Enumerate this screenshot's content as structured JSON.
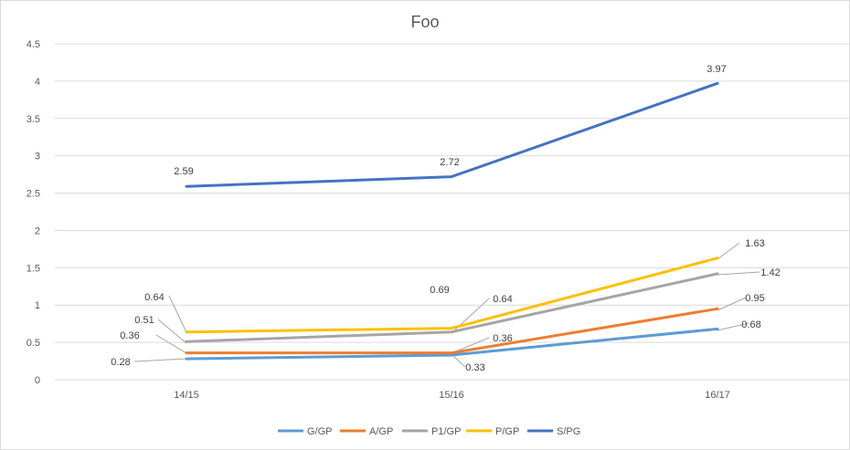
{
  "chart_data": {
    "type": "line",
    "title": "Foo",
    "categories": [
      "14/15",
      "15/16",
      "16/17"
    ],
    "ylim": [
      0,
      4.5
    ],
    "yticks": [
      "0",
      "0.5",
      "1",
      "1.5",
      "2",
      "2.5",
      "3",
      "3.5",
      "4",
      "4.5"
    ],
    "grid": true,
    "legend_position": "bottom",
    "series": [
      {
        "name": "G/GP",
        "color": "#5b9bd5",
        "values": [
          0.28,
          0.33,
          0.68
        ],
        "labels": [
          "0.28",
          "0.33",
          "0.68"
        ]
      },
      {
        "name": "A/GP",
        "color": "#ed7d31",
        "values": [
          0.36,
          0.36,
          0.95
        ],
        "labels": [
          "0.36",
          "0.36",
          "0.95"
        ]
      },
      {
        "name": "P1/GP",
        "color": "#a5a5a5",
        "values": [
          0.51,
          0.64,
          1.42
        ],
        "labels": [
          "0.51",
          "0.64",
          "1.42"
        ]
      },
      {
        "name": "P/GP",
        "color": "#ffc000",
        "values": [
          0.64,
          0.69,
          1.63
        ],
        "labels": [
          "0.64",
          "0.69",
          "1.63"
        ]
      },
      {
        "name": "S/PG",
        "color": "#4472c4",
        "values": [
          2.59,
          2.72,
          3.97
        ],
        "labels": [
          "2.59",
          "2.72",
          "3.97"
        ]
      }
    ]
  }
}
